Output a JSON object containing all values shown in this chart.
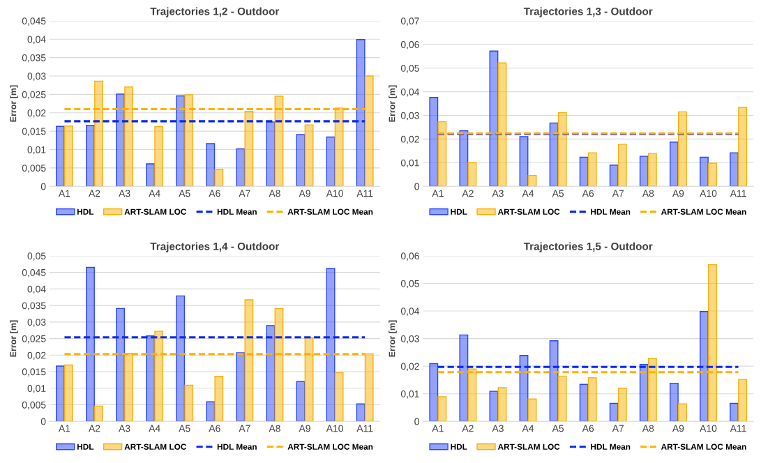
{
  "chart_data": [
    {
      "type": "bar",
      "title": "Trajectories 1,2 - Outdoor",
      "ylabel": "Error [m]",
      "categories": [
        "A1",
        "A2",
        "A3",
        "A4",
        "A5",
        "A6",
        "A7",
        "A8",
        "A9",
        "A10",
        "A11"
      ],
      "series": [
        {
          "name": "HDL",
          "color": "#2a46f5",
          "values": [
            0.0163,
            0.0166,
            0.0251,
            0.0061,
            0.0246,
            0.0116,
            0.0102,
            0.0175,
            0.0141,
            0.0134,
            0.0399
          ]
        },
        {
          "name": "ART-SLAM LOC",
          "color": "#f5b20a",
          "values": [
            0.0164,
            0.0286,
            0.027,
            0.0162,
            0.0249,
            0.0046,
            0.0204,
            0.0245,
            0.0167,
            0.0213,
            0.03
          ]
        },
        {
          "name": "HDL Mean",
          "type": "line",
          "line_style": "dashed",
          "color": "#0a28f0",
          "values": [
            0.0177,
            0.0177,
            0.0177,
            0.0177,
            0.0177,
            0.0177,
            0.0177,
            0.0177,
            0.0177,
            0.0177,
            0.0177
          ]
        },
        {
          "name": "ART-SLAM LOC Mean",
          "type": "line",
          "line_style": "dashed",
          "color": "#ffb000",
          "values": [
            0.021,
            0.021,
            0.021,
            0.021,
            0.021,
            0.021,
            0.021,
            0.021,
            0.021,
            0.021,
            0.021
          ]
        }
      ],
      "ylim": [
        0,
        0.045
      ],
      "yticks": [
        0,
        {
          "value": 0.005,
          "label": "0,005"
        },
        {
          "value": 0.01,
          "label": "0,01"
        },
        {
          "value": 0.015,
          "label": "0,015"
        },
        {
          "value": 0.02,
          "label": "0,02"
        },
        {
          "value": 0.025,
          "label": "0,025"
        },
        {
          "value": 0.03,
          "label": "0,03"
        },
        {
          "value": 0.035,
          "label": "0,035"
        },
        {
          "value": 0.04,
          "label": "0,04"
        },
        {
          "value": 0.045,
          "label": "0,045"
        }
      ],
      "grid": "y",
      "legend": "bottom"
    },
    {
      "type": "bar",
      "title": "Trajectories 1,3 - Outdoor",
      "ylabel": "Error [m]",
      "categories": [
        "A1",
        "A2",
        "A3",
        "A4",
        "A5",
        "A6",
        "A7",
        "A8",
        "A9",
        "A10",
        "A11"
      ],
      "series": [
        {
          "name": "HDL",
          "color": "#2a46f5",
          "values": [
            0.0376,
            0.0235,
            0.0572,
            0.021,
            0.0268,
            0.0123,
            0.009,
            0.0127,
            0.0187,
            0.0123,
            0.0142
          ]
        },
        {
          "name": "ART-SLAM LOC",
          "color": "#f5b20a",
          "values": [
            0.0273,
            0.01,
            0.0522,
            0.0046,
            0.0312,
            0.0142,
            0.0178,
            0.0139,
            0.0315,
            0.0098,
            0.0334
          ]
        },
        {
          "name": "HDL Mean",
          "type": "line",
          "line_style": "dashed",
          "color": "#0a28f0",
          "values": [
            0.0221,
            0.0221,
            0.0221,
            0.0221,
            0.0221,
            0.0221,
            0.0221,
            0.0221,
            0.0221,
            0.0221,
            0.0221
          ]
        },
        {
          "name": "ART-SLAM LOC Mean",
          "type": "line",
          "line_style": "dashed",
          "color": "#ffb000",
          "values": [
            0.0224,
            0.0224,
            0.0224,
            0.0224,
            0.0224,
            0.0224,
            0.0224,
            0.0224,
            0.0224,
            0.0224,
            0.0224
          ]
        }
      ],
      "ylim": [
        0,
        0.07
      ],
      "yticks": [
        0,
        {
          "value": 0.01,
          "label": "0,01"
        },
        {
          "value": 0.02,
          "label": "0,02"
        },
        {
          "value": 0.03,
          "label": "0,03"
        },
        {
          "value": 0.04,
          "label": "0,04"
        },
        {
          "value": 0.05,
          "label": "0,05"
        },
        {
          "value": 0.06,
          "label": "0,06"
        },
        {
          "value": 0.07,
          "label": "0,07"
        }
      ],
      "grid": "y",
      "legend": "bottom"
    },
    {
      "type": "bar",
      "title": "Trajectories 1,4 - Outdoor",
      "ylabel": "Error [m]",
      "categories": [
        "A1",
        "A2",
        "A3",
        "A4",
        "A5",
        "A6",
        "A7",
        "A8",
        "A9",
        "A10",
        "A11"
      ],
      "series": [
        {
          "name": "HDL",
          "color": "#2a46f5",
          "values": [
            0.0167,
            0.0465,
            0.0341,
            0.0258,
            0.0379,
            0.0059,
            0.0207,
            0.0289,
            0.012,
            0.0462,
            0.0053
          ]
        },
        {
          "name": "ART-SLAM LOC",
          "color": "#f5b20a",
          "values": [
            0.017,
            0.0046,
            0.0205,
            0.0272,
            0.0109,
            0.0136,
            0.0367,
            0.0341,
            0.0253,
            0.0147,
            0.0204
          ]
        },
        {
          "name": "HDL Mean",
          "type": "line",
          "line_style": "dashed",
          "color": "#0a28f0",
          "values": [
            0.0254,
            0.0254,
            0.0254,
            0.0254,
            0.0254,
            0.0254,
            0.0254,
            0.0254,
            0.0254,
            0.0254,
            0.0254
          ]
        },
        {
          "name": "ART-SLAM LOC Mean",
          "type": "line",
          "line_style": "dashed",
          "color": "#ffb000",
          "values": [
            0.0203,
            0.0203,
            0.0203,
            0.0203,
            0.0203,
            0.0203,
            0.0203,
            0.0203,
            0.0203,
            0.0203,
            0.0203
          ]
        }
      ],
      "ylim": [
        0,
        0.05
      ],
      "yticks": [
        0,
        {
          "value": 0.005,
          "label": "0,005"
        },
        {
          "value": 0.01,
          "label": "0,01"
        },
        {
          "value": 0.015,
          "label": "0,015"
        },
        {
          "value": 0.02,
          "label": "0,02"
        },
        {
          "value": 0.025,
          "label": "0,025"
        },
        {
          "value": 0.03,
          "label": "0,03"
        },
        {
          "value": 0.035,
          "label": "0,035"
        },
        {
          "value": 0.04,
          "label": "0,04"
        },
        {
          "value": 0.045,
          "label": "0,045"
        },
        {
          "value": 0.05,
          "label": "0,05"
        }
      ],
      "grid": "y",
      "legend": "bottom"
    },
    {
      "type": "bar",
      "title": "Trajectories 1,5 - Outdoor",
      "ylabel": "Error [m]",
      "categories": [
        "A1",
        "A2",
        "A3",
        "A4",
        "A5",
        "A6",
        "A7",
        "A8",
        "A9",
        "A10",
        "A11"
      ],
      "series": [
        {
          "name": "HDL",
          "color": "#2a46f5",
          "values": [
            0.0209,
            0.0313,
            0.0109,
            0.0239,
            0.0292,
            0.0134,
            0.0065,
            0.0206,
            0.0138,
            0.0398,
            0.0065
          ]
        },
        {
          "name": "ART-SLAM LOC",
          "color": "#f5b20a",
          "values": [
            0.0089,
            0.019,
            0.0122,
            0.0081,
            0.0164,
            0.0158,
            0.012,
            0.0228,
            0.0063,
            0.0568,
            0.0152
          ]
        },
        {
          "name": "HDL Mean",
          "type": "line",
          "line_style": "dashed",
          "color": "#0a28f0",
          "values": [
            0.0197,
            0.0197,
            0.0197,
            0.0197,
            0.0197,
            0.0197,
            0.0197,
            0.0197,
            0.0197,
            0.0197,
            0.0197
          ]
        },
        {
          "name": "ART-SLAM LOC Mean",
          "type": "line",
          "line_style": "dashed",
          "color": "#ffb000",
          "values": [
            0.0178,
            0.0178,
            0.0178,
            0.0178,
            0.0178,
            0.0178,
            0.0178,
            0.0178,
            0.0178,
            0.0178,
            0.0178
          ]
        }
      ],
      "ylim": [
        0,
        0.06
      ],
      "yticks": [
        0,
        {
          "value": 0.01,
          "label": "0,01"
        },
        {
          "value": 0.02,
          "label": "0,02"
        },
        {
          "value": 0.03,
          "label": "0,03"
        },
        {
          "value": 0.04,
          "label": "0,04"
        },
        {
          "value": 0.05,
          "label": "0,05"
        },
        {
          "value": 0.06,
          "label": "0,06"
        }
      ],
      "grid": "y",
      "legend": "bottom"
    }
  ]
}
